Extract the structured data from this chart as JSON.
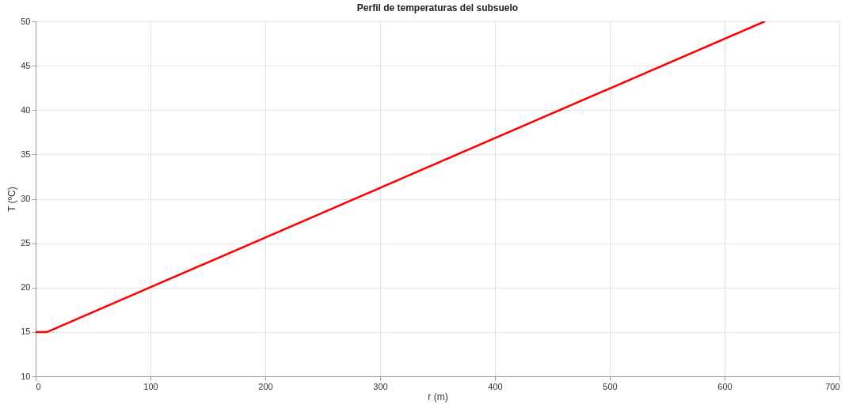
{
  "chart_data": {
    "type": "line",
    "title": "Perfil de temperaturas del subsuelo",
    "xlabel": "r (m)",
    "ylabel": "T (ºC)",
    "x": [
      0,
      10,
      635
    ],
    "series": [
      {
        "color": "#ff0000",
        "values": [
          15,
          15,
          50
        ]
      }
    ],
    "xlim": [
      0,
      700
    ],
    "xticks": [
      0,
      100,
      200,
      300,
      400,
      500,
      600,
      700
    ],
    "ylim": [
      10,
      50
    ],
    "yticks": [
      10,
      15,
      20,
      25,
      30,
      35,
      40,
      45,
      50
    ],
    "grid": true,
    "legend": false,
    "line_style": "solid"
  }
}
